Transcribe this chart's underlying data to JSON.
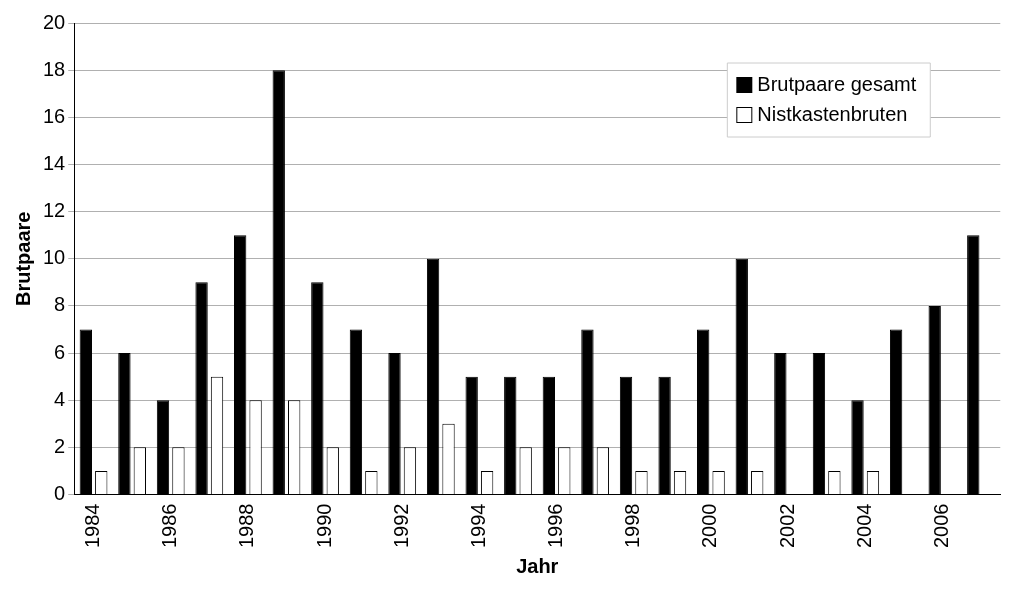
{
  "chart_data": {
    "type": "bar",
    "xlabel": "Jahr",
    "ylabel": "Brutpaare",
    "categories": [
      "1984",
      null,
      "1986",
      null,
      "1988",
      null,
      "1990",
      null,
      "1992",
      null,
      "1994",
      null,
      "1996",
      null,
      "1998",
      null,
      "2000",
      null,
      "2002",
      null,
      "2004",
      null,
      "2006",
      null
    ],
    "series": [
      {
        "name": "Brutpaare gesamt",
        "color": "#000000",
        "values": [
          7,
          6,
          4,
          9,
          11,
          18,
          9,
          7,
          6,
          10,
          5,
          5,
          5,
          7,
          5,
          5,
          7,
          10,
          6,
          6,
          4,
          7,
          8,
          11
        ]
      },
      {
        "name": "Nistkastenbruten",
        "color": "#ffffff",
        "values": [
          1,
          2,
          2,
          5,
          4,
          4,
          2,
          1,
          2,
          3,
          1,
          2,
          2,
          2,
          1,
          1,
          1,
          1,
          0,
          1,
          1,
          0,
          0,
          0
        ]
      }
    ],
    "ylim": [
      0,
      20
    ],
    "yticks": [
      0,
      2,
      4,
      6,
      8,
      10,
      12,
      14,
      16,
      18,
      20
    ],
    "grid": "y",
    "legend": "top right"
  }
}
